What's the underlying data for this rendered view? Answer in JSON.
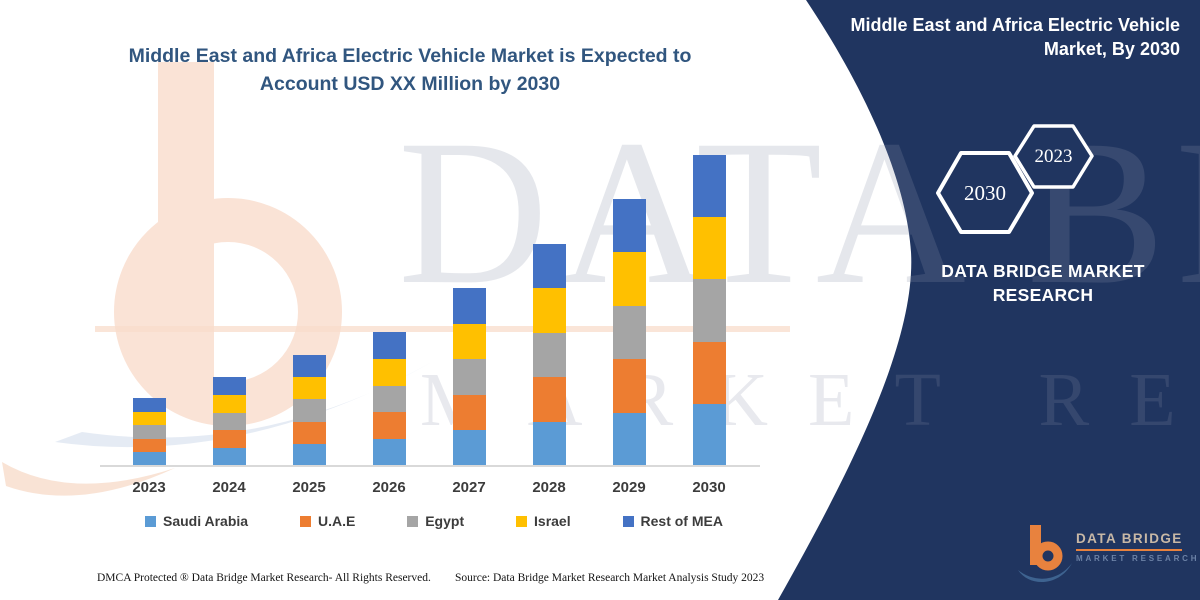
{
  "title": {
    "line1": "Middle East and Africa Electric Vehicle Market is Expected to",
    "line2": "Account USD XX Million by 2030"
  },
  "panel": {
    "bg_color": "#203560",
    "heading": "Middle East and Africa Electric Vehicle Market, By 2030",
    "hexagons": [
      {
        "label": "2030"
      },
      {
        "label": "2023"
      }
    ],
    "brand": "DATA BRIDGE MARKET RESEARCH",
    "logo": {
      "name": "DATA BRIDGE",
      "subname": "MARKET RESEARCH",
      "accent_color": "#E8823E",
      "swoosh_color": "#3E6390"
    }
  },
  "watermark": {
    "row1": "DATA BRIDGE",
    "row2": "MARKET RESEARCH"
  },
  "chart_data": {
    "type": "bar",
    "variant": "stacked-column",
    "title": "Middle East and Africa Electric Vehicle Market is Expected to Account USD XX Million by 2030",
    "categories": [
      "2023",
      "2024",
      "2025",
      "2026",
      "2027",
      "2028",
      "2029",
      "2030"
    ],
    "series": [
      {
        "name": "Saudi Arabia",
        "color": "#5B9BD5",
        "values": [
          13.6,
          17.8,
          22.2,
          26.8,
          35.6,
          44.4,
          53.4,
          62.2
        ]
      },
      {
        "name": "U.A.E",
        "color": "#ED7D31",
        "values": [
          13.6,
          17.8,
          22.2,
          26.8,
          35.6,
          44.4,
          53.4,
          62.2
        ]
      },
      {
        "name": "Egypt",
        "color": "#A5A5A5",
        "values": [
          13.6,
          17.8,
          22.2,
          26.8,
          35.6,
          44.4,
          53.4,
          62.2
        ]
      },
      {
        "name": "Israel",
        "color": "#FFC000",
        "values": [
          13.6,
          17.8,
          22.2,
          26.8,
          35.6,
          44.4,
          53.4,
          62.2
        ]
      },
      {
        "name": "Rest of MEA",
        "color": "#4472C4",
        "values": [
          13.6,
          17.8,
          22.2,
          26.8,
          35.6,
          44.4,
          53.4,
          62.2
        ]
      }
    ],
    "totals": [
      68,
      89,
      111,
      134,
      178,
      222,
      267,
      311
    ],
    "units": "USD Million (figures masked as XX in title)",
    "xlabel": "",
    "ylabel": "",
    "y_axis_shown": false,
    "grid": false,
    "legend_position": "bottom"
  },
  "footer": {
    "left": "DMCA Protected ® Data Bridge Market Research-  All Rights Reserved.",
    "source": "Source: Data Bridge Market Research  Market Analysis Study 2023"
  }
}
